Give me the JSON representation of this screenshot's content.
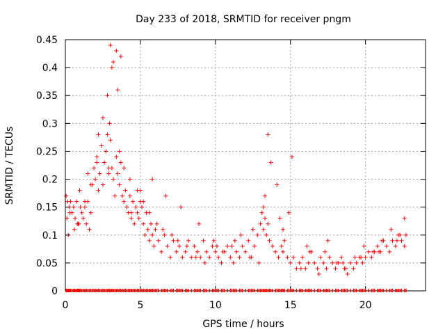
{
  "chart_data": {
    "type": "scatter",
    "title": "Day 233 of 2018, SRMTID for receiver pngm",
    "xlabel": "GPS time / hours",
    "ylabel": "SRMTID / TECUs",
    "xlim": [
      0,
      24
    ],
    "ylim": [
      0,
      0.45
    ],
    "xticks": [
      0,
      5,
      10,
      15,
      20
    ],
    "yticks": [
      0,
      0.05,
      0.1,
      0.15,
      0.2,
      0.25,
      0.3,
      0.35,
      0.4,
      0.45
    ],
    "xtick_labels": [
      "0",
      "5",
      "10",
      "15",
      "20"
    ],
    "ytick_labels": [
      "0",
      "0.05",
      "0.1",
      "0.15",
      "0.2",
      "0.25",
      "0.3",
      "0.35",
      "0.4",
      "0.45"
    ],
    "grid": true,
    "marker": "+",
    "color": "#ff0000",
    "series": [
      {
        "name": "SRMTID",
        "x": [
          0.05,
          0.15,
          0.25,
          0.35,
          0.45,
          0.55,
          0.65,
          0.75,
          0.85,
          0.95,
          1.0,
          1.1,
          1.2,
          1.3,
          1.4,
          1.5,
          1.6,
          1.7,
          1.8,
          1.9,
          2.0,
          2.1,
          2.2,
          2.3,
          2.4,
          2.5,
          2.6,
          2.7,
          2.8,
          2.9,
          2.95,
          3.0,
          3.1,
          3.2,
          3.3,
          3.4,
          3.5,
          3.6,
          3.7,
          3.8,
          3.9,
          4.0,
          4.1,
          4.2,
          4.3,
          4.4,
          4.5,
          4.6,
          4.7,
          4.8,
          4.9,
          5.0,
          5.1,
          5.2,
          5.3,
          5.4,
          5.5,
          5.6,
          5.7,
          5.8,
          5.9,
          6.0,
          6.2,
          6.4,
          6.6,
          6.8,
          7.0,
          7.2,
          7.4,
          7.6,
          7.8,
          8.0,
          8.2,
          8.4,
          8.6,
          8.8,
          9.0,
          9.2,
          9.4,
          9.6,
          9.8,
          10.0,
          10.2,
          10.4,
          10.6,
          10.8,
          11.0,
          11.2,
          11.4,
          11.6,
          11.8,
          12.0,
          12.2,
          12.4,
          12.6,
          12.8,
          13.0,
          13.1,
          13.2,
          13.3,
          13.4,
          13.5,
          13.6,
          13.8,
          14.0,
          14.2,
          14.4,
          14.5,
          14.6,
          14.8,
          15.0,
          15.2,
          15.4,
          15.6,
          15.8,
          16.0,
          16.2,
          16.4,
          16.6,
          16.8,
          17.0,
          17.2,
          17.4,
          17.6,
          17.8,
          18.0,
          18.2,
          18.4,
          18.6,
          18.8,
          19.0,
          19.2,
          19.4,
          19.6,
          19.8,
          20.0,
          20.2,
          20.4,
          20.6,
          20.8,
          21.0,
          21.2,
          21.4,
          21.6,
          21.8,
          22.0,
          22.2,
          22.4,
          22.6,
          22.7,
          0.1,
          0.3,
          0.6,
          0.9,
          1.3,
          1.7,
          2.1,
          2.5,
          2.8,
          3.0,
          3.2,
          3.4,
          3.6,
          3.9,
          4.3,
          4.8,
          5.2,
          5.6,
          6.1,
          6.5,
          7.1,
          7.5,
          8.1,
          8.7,
          9.3,
          9.9,
          10.5,
          11.1,
          11.7,
          12.3,
          12.9,
          13.2,
          13.5,
          14.1,
          14.5,
          15.1,
          15.7,
          16.3,
          16.9,
          17.5,
          18.1,
          18.7,
          19.3,
          19.9,
          20.5,
          21.1,
          21.7,
          22.3,
          22.6,
          0.2,
          0.8,
          1.5,
          2.2,
          2.9,
          3.1,
          3.5,
          3.7,
          4.4,
          5.0,
          5.8,
          6.7,
          7.7,
          8.9,
          10.1,
          11.3,
          12.5,
          13.3,
          13.7,
          14.3,
          14.9,
          16.1,
          17.3,
          18.5,
          19.7,
          20.9,
          22.1
        ],
        "y": [
          0.17,
          0.16,
          0.15,
          0.16,
          0.14,
          0.15,
          0.13,
          0.16,
          0.12,
          0.18,
          0.15,
          0.14,
          0.13,
          0.15,
          0.12,
          0.16,
          0.11,
          0.14,
          0.19,
          0.22,
          0.2,
          0.24,
          0.18,
          0.21,
          0.26,
          0.19,
          0.23,
          0.25,
          0.28,
          0.21,
          0.3,
          0.27,
          0.22,
          0.2,
          0.17,
          0.24,
          0.21,
          0.19,
          0.23,
          0.17,
          0.16,
          0.18,
          0.15,
          0.14,
          0.17,
          0.13,
          0.16,
          0.12,
          0.15,
          0.14,
          0.13,
          0.16,
          0.15,
          0.12,
          0.1,
          0.14,
          0.11,
          0.09,
          0.12,
          0.1,
          0.08,
          0.11,
          0.09,
          0.07,
          0.1,
          0.08,
          0.06,
          0.09,
          0.07,
          0.08,
          0.06,
          0.07,
          0.09,
          0.06,
          0.08,
          0.07,
          0.06,
          0.09,
          0.07,
          0.06,
          0.08,
          0.07,
          0.06,
          0.05,
          0.07,
          0.08,
          0.06,
          0.05,
          0.07,
          0.06,
          0.08,
          0.07,
          0.09,
          0.06,
          0.08,
          0.1,
          0.12,
          0.14,
          0.11,
          0.13,
          0.1,
          0.12,
          0.09,
          0.08,
          0.07,
          0.06,
          0.08,
          0.07,
          0.09,
          0.06,
          0.05,
          0.06,
          0.04,
          0.05,
          0.06,
          0.04,
          0.05,
          0.07,
          0.05,
          0.04,
          0.06,
          0.05,
          0.04,
          0.06,
          0.05,
          0.04,
          0.05,
          0.06,
          0.04,
          0.03,
          0.05,
          0.04,
          0.05,
          0.06,
          0.05,
          0.06,
          0.07,
          0.06,
          0.07,
          0.08,
          0.07,
          0.09,
          0.08,
          0.07,
          0.09,
          0.08,
          0.1,
          0.09,
          0.08,
          0.1,
          0.13,
          0.14,
          0.11,
          0.12,
          0.16,
          0.19,
          0.23,
          0.31,
          0.35,
          0.44,
          0.41,
          0.43,
          0.25,
          0.22,
          0.2,
          0.18,
          0.16,
          0.14,
          0.12,
          0.11,
          0.1,
          0.09,
          0.08,
          0.06,
          0.05,
          0.09,
          0.07,
          0.08,
          0.1,
          0.06,
          0.05,
          0.15,
          0.28,
          0.19,
          0.11,
          0.24,
          0.04,
          0.07,
          0.03,
          0.09,
          0.05,
          0.04,
          0.06,
          0.08,
          0.07,
          0.09,
          0.11,
          0.1,
          0.13,
          0.1,
          0.12,
          0.21,
          0.28,
          0.22,
          0.4,
          0.36,
          0.42,
          0.14,
          0.18,
          0.2,
          0.17,
          0.15,
          0.12,
          0.08,
          0.09,
          0.11,
          0.17,
          0.23,
          0.13,
          0.14,
          0.08,
          0.07,
          0.05,
          0.06,
          0.07,
          0.09
        ]
      }
    ]
  }
}
